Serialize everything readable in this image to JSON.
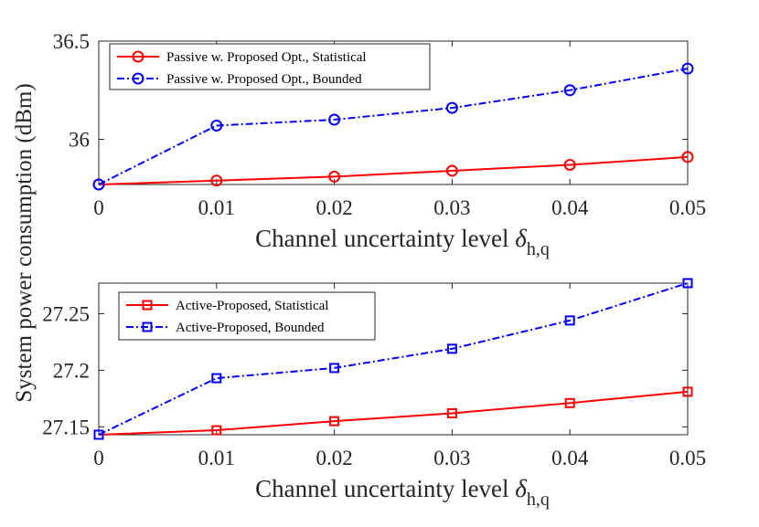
{
  "y_label": "System power consumption (dBm)",
  "chart_data": [
    {
      "type": "line",
      "x": [
        0,
        0.01,
        0.02,
        0.03,
        0.04,
        0.05
      ],
      "x_tick_labels": [
        "0",
        "0.01",
        "0.02",
        "0.03",
        "0.04",
        "0.05"
      ],
      "xlabel": "Channel uncertainty level",
      "xlabel_symbol": "δ",
      "xlabel_subscript": "h,q",
      "xlim": [
        0,
        0.05
      ],
      "ylim": [
        35.77,
        36.5
      ],
      "y_ticks": [
        36,
        36.5
      ],
      "y_tick_labels": [
        "36",
        "36.5"
      ],
      "series": [
        {
          "name": "Passive w. Proposed Opt., Statistical",
          "color": "#ff0000",
          "marker": "circle",
          "line": "solid",
          "values": [
            35.77,
            35.79,
            35.81,
            35.84,
            35.87,
            35.91
          ]
        },
        {
          "name": "Passive w. Proposed Opt., Bounded",
          "color": "#0000ff",
          "marker": "circle",
          "line": "dashdot",
          "values": [
            35.77,
            36.07,
            36.1,
            36.16,
            36.25,
            36.36
          ]
        }
      ]
    },
    {
      "type": "line",
      "x": [
        0,
        0.01,
        0.02,
        0.03,
        0.04,
        0.05
      ],
      "x_tick_labels": [
        "0",
        "0.01",
        "0.02",
        "0.03",
        "0.04",
        "0.05"
      ],
      "xlabel": "Channel uncertainty level",
      "xlabel_symbol": "δ",
      "xlabel_subscript": "h,q",
      "xlim": [
        0,
        0.05
      ],
      "ylim": [
        27.143,
        27.277
      ],
      "y_ticks": [
        27.15,
        27.2,
        27.25
      ],
      "y_tick_labels": [
        "27.15",
        "27.2",
        "27.25"
      ],
      "series": [
        {
          "name": "Active-Proposed, Statistical",
          "color": "#ff0000",
          "marker": "square",
          "line": "solid",
          "values": [
            27.143,
            27.147,
            27.155,
            27.162,
            27.171,
            27.181
          ]
        },
        {
          "name": "Active-Proposed, Bounded",
          "color": "#0000ff",
          "marker": "square",
          "line": "dashdot",
          "values": [
            27.143,
            27.193,
            27.202,
            27.219,
            27.244,
            27.277
          ]
        }
      ]
    }
  ]
}
